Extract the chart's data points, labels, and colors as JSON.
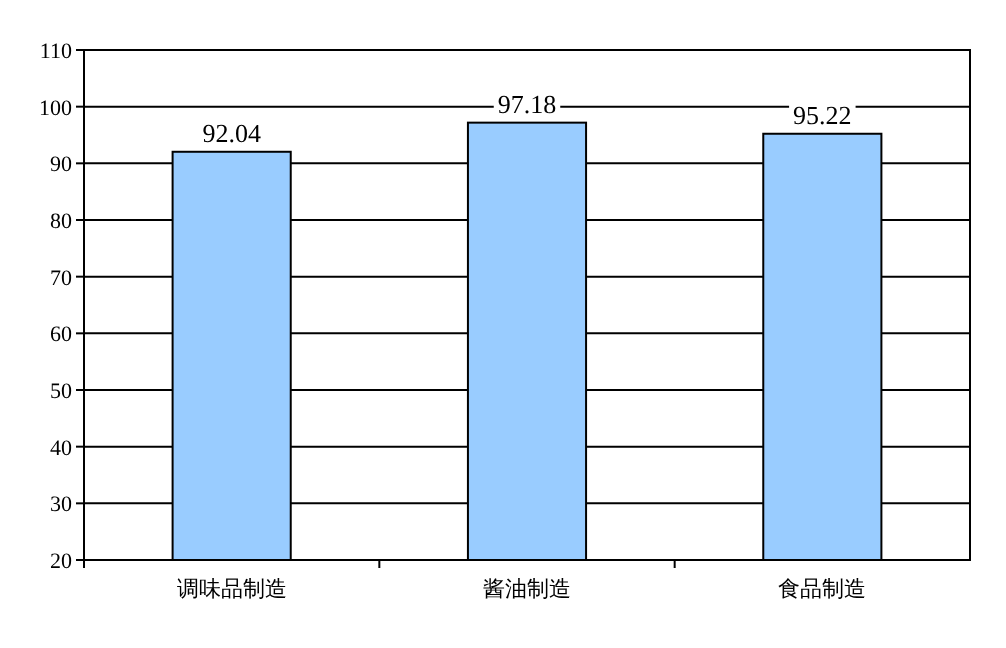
{
  "chart_data": {
    "type": "bar",
    "categories": [
      "调味品制造",
      "酱油制造",
      "食品制造"
    ],
    "values": [
      92.04,
      97.18,
      95.22
    ],
    "color": "#99ccff",
    "ylim": [
      20,
      110
    ],
    "yticks": [
      20,
      30,
      40,
      50,
      60,
      70,
      80,
      90,
      100,
      110
    ],
    "grid": "y",
    "data_labels": true
  }
}
